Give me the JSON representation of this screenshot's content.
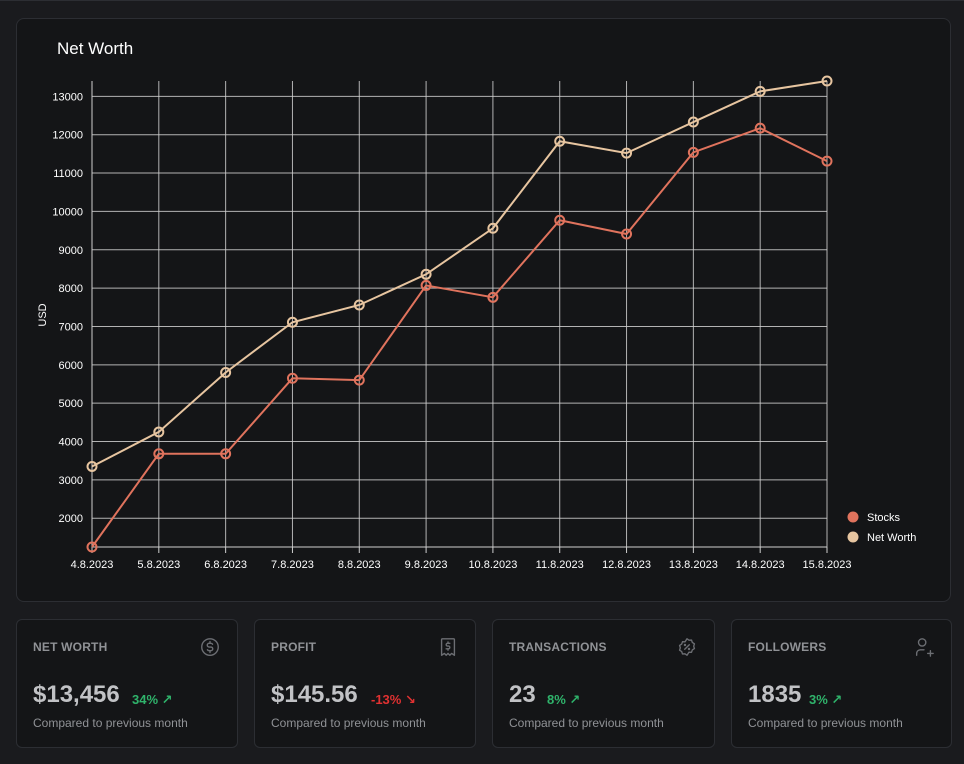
{
  "chart_data": {
    "type": "line",
    "title": "Net Worth",
    "ylabel": "USD",
    "x": [
      "4.8.2023",
      "5.8.2023",
      "6.8.2023",
      "7.8.2023",
      "8.8.2023",
      "9.8.2023",
      "10.8.2023",
      "11.8.2023",
      "12.8.2023",
      "13.8.2023",
      "14.8.2023",
      "15.8.2023"
    ],
    "yticks": [
      2000,
      3000,
      4000,
      5000,
      6000,
      7000,
      8000,
      9000,
      10000,
      11000,
      12000,
      13000
    ],
    "ylim": [
      1250,
      13400
    ],
    "grid": true,
    "legend_position": "right-bottom",
    "series": [
      {
        "name": "Stocks",
        "color": "#e0735d",
        "values": [
          1250,
          3680,
          3680,
          5650,
          5600,
          8070,
          7760,
          9770,
          9410,
          11540,
          12170,
          11310
        ]
      },
      {
        "name": "Net Worth",
        "color": "#e7c5a0",
        "values": [
          3350,
          4250,
          5800,
          7110,
          7560,
          8360,
          9560,
          11830,
          11520,
          12330,
          13130,
          13400
        ]
      }
    ]
  },
  "stats": [
    {
      "label": "NET WORTH",
      "value": "$13,456",
      "diff": "34% ↗",
      "direction": "up",
      "icon": "dollar-circle-icon",
      "sub": "Compared to previous month"
    },
    {
      "label": "PROFIT",
      "value": "$145.56",
      "diff": "-13% ↘",
      "direction": "down",
      "icon": "receipt-icon",
      "sub": "Compared to previous month"
    },
    {
      "label": "TRANSACTIONS",
      "value": "23",
      "diff": "8% ↗",
      "direction": "up",
      "icon": "discount-badge-icon",
      "sub": "Compared to previous month"
    },
    {
      "label": "FOLLOWERS",
      "value": "1835",
      "diff": "3% ↗",
      "direction": "up",
      "icon": "user-plus-icon",
      "sub": "Compared to previous month"
    }
  ]
}
